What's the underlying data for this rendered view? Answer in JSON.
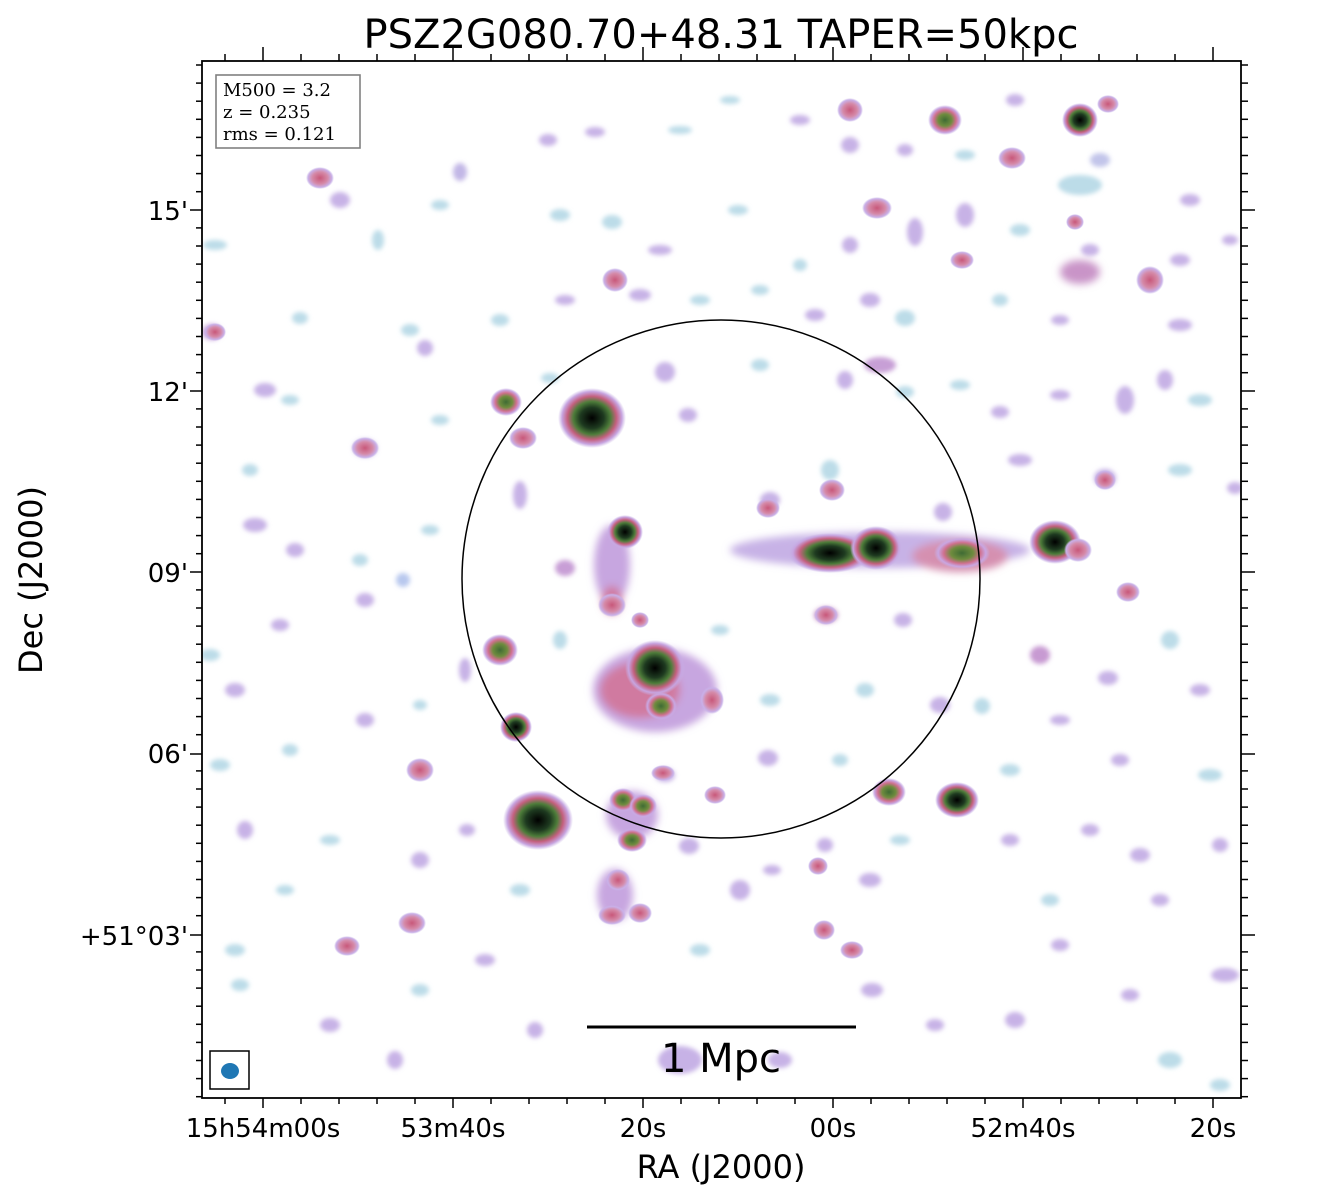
{
  "title": "PSZ2G080.70+48.31 TAPER=50kpc",
  "info_box": {
    "mass": "M500 = 3.2",
    "redshift": "z = 0.235",
    "rms": "rms = 0.121"
  },
  "scale_bar": {
    "label": "1 Mpc"
  },
  "x_axis": {
    "label": "RA (J2000)",
    "ticks": [
      "15h54m00s",
      "53m40s",
      "20s",
      "00s",
      "52m40s",
      "20s"
    ]
  },
  "y_axis": {
    "label": "Dec (J2000)",
    "ticks": [
      "15'",
      "12'",
      "09'",
      "06'",
      "+51°03'"
    ]
  },
  "colors": {
    "faint_emission": "#b8dde6",
    "low_emission": "#c7b2e6",
    "mid_emission": "#d0708e",
    "high_emission": "#4e7d3a",
    "peak_emission": "#000000",
    "beam": "#1f77b4"
  }
}
